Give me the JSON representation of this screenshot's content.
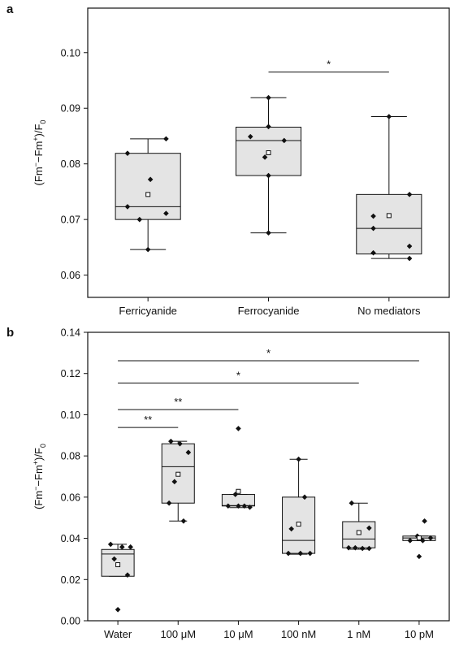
{
  "chart_data": [
    {
      "type": "box",
      "panel_label": "a",
      "ylabel": "(Fm⁻−Fm⁺)/F₀",
      "ylabel_parts": {
        "open": "(Fm",
        "sup1": "−",
        "dash": "−Fm",
        "sup2": "+",
        "close": ")/F",
        "sub": "0"
      },
      "ylim": [
        0.056,
        0.108
      ],
      "yticks": [
        0.06,
        0.07,
        0.08,
        0.09,
        0.1
      ],
      "ytick_labels": [
        "0.06",
        "0.07",
        "0.08",
        "0.09",
        "0.10"
      ],
      "categories": [
        "Ferricyanide",
        "Ferrocyanide",
        "No mediators"
      ],
      "boxes": [
        {
          "category": "Ferricyanide",
          "whisker_low": 0.0646,
          "q1": 0.07,
          "median": 0.0723,
          "q3": 0.0819,
          "whisker_high": 0.0845,
          "mean": 0.0745,
          "points": [
            {
              "j": 0.15,
              "y": 0.0845
            },
            {
              "j": -0.17,
              "y": 0.0819
            },
            {
              "j": 0.02,
              "y": 0.0772
            },
            {
              "j": -0.17,
              "y": 0.0723
            },
            {
              "j": 0.15,
              "y": 0.0711
            },
            {
              "j": -0.07,
              "y": 0.07
            },
            {
              "j": 0.0,
              "y": 0.0646
            }
          ]
        },
        {
          "category": "Ferrocyanide",
          "whisker_low": 0.0676,
          "q1": 0.0779,
          "median": 0.0842,
          "q3": 0.0866,
          "whisker_high": 0.0919,
          "mean": 0.082,
          "points": [
            {
              "j": 0.0,
              "y": 0.0919
            },
            {
              "j": 0.0,
              "y": 0.0867
            },
            {
              "j": -0.15,
              "y": 0.0849
            },
            {
              "j": 0.13,
              "y": 0.0842
            },
            {
              "j": -0.03,
              "y": 0.0812
            },
            {
              "j": 0.0,
              "y": 0.0779
            },
            {
              "j": 0.0,
              "y": 0.0676
            }
          ]
        },
        {
          "category": "No mediators",
          "whisker_low": 0.063,
          "q1": 0.0638,
          "median": 0.0684,
          "q3": 0.0745,
          "whisker_high": 0.0885,
          "mean": 0.0707,
          "points": [
            {
              "j": 0.0,
              "y": 0.0885
            },
            {
              "j": 0.17,
              "y": 0.0745
            },
            {
              "j": -0.13,
              "y": 0.0706
            },
            {
              "j": -0.13,
              "y": 0.0684
            },
            {
              "j": 0.17,
              "y": 0.0652
            },
            {
              "j": -0.13,
              "y": 0.064
            },
            {
              "j": 0.17,
              "y": 0.063
            }
          ]
        }
      ],
      "significance": [
        {
          "from": 1,
          "to": 2,
          "y": 0.0965,
          "label": "*"
        }
      ]
    },
    {
      "type": "box",
      "panel_label": "b",
      "ylabel": "(Fm⁻−Fm⁺)/F₀",
      "ylabel_parts": {
        "open": "(Fm",
        "sup1": "−",
        "dash": "−Fm",
        "sup2": "+",
        "close": ")/F",
        "sub": "0"
      },
      "ylim": [
        0.0,
        0.14
      ],
      "yticks": [
        0.0,
        0.02,
        0.04,
        0.06,
        0.08,
        0.1,
        0.12,
        0.14
      ],
      "ytick_labels": [
        "0.00",
        "0.02",
        "0.04",
        "0.06",
        "0.08",
        "0.10",
        "0.12",
        "0.14"
      ],
      "categories": [
        "Water",
        "100 μM",
        "10 μM",
        "100 nM",
        "1 nM",
        "10 pM"
      ],
      "boxes": [
        {
          "category": "Water",
          "whisker_low": 0.0216,
          "q1": 0.0216,
          "median": 0.0324,
          "q3": 0.0346,
          "whisker_high": 0.0371,
          "mean": 0.0272,
          "points": [
            {
              "j": -0.12,
              "y": 0.0371
            },
            {
              "j": 0.07,
              "y": 0.0358
            },
            {
              "j": 0.21,
              "y": 0.0358
            },
            {
              "j": -0.06,
              "y": 0.03
            },
            {
              "j": 0.16,
              "y": 0.0222
            },
            {
              "j": 0.0,
              "y": 0.0054
            }
          ]
        },
        {
          "category": "100 μM",
          "whisker_low": 0.0484,
          "q1": 0.0571,
          "median": 0.0748,
          "q3": 0.0859,
          "whisker_high": 0.0871,
          "mean": 0.0711,
          "points": [
            {
              "j": -0.12,
              "y": 0.0871
            },
            {
              "j": 0.03,
              "y": 0.0859
            },
            {
              "j": 0.17,
              "y": 0.0817
            },
            {
              "j": -0.06,
              "y": 0.0675
            },
            {
              "j": -0.15,
              "y": 0.0571
            },
            {
              "j": 0.09,
              "y": 0.0484
            }
          ]
        },
        {
          "category": "10 μM",
          "whisker_low": 0.0549,
          "q1": 0.0557,
          "median": 0.0559,
          "q3": 0.0613,
          "whisker_high": 0.0613,
          "mean": 0.0628,
          "points": [
            {
              "j": 0.0,
              "y": 0.0933
            },
            {
              "j": -0.05,
              "y": 0.0613
            },
            {
              "j": -0.17,
              "y": 0.0557
            },
            {
              "j": 0.0,
              "y": 0.0557
            },
            {
              "j": 0.1,
              "y": 0.0557
            },
            {
              "j": 0.19,
              "y": 0.0551
            }
          ]
        },
        {
          "category": "100 nM",
          "whisker_low": 0.0323,
          "q1": 0.0327,
          "median": 0.039,
          "q3": 0.06,
          "whisker_high": 0.0784,
          "mean": 0.0469,
          "points": [
            {
              "j": 0.0,
              "y": 0.0784
            },
            {
              "j": 0.1,
              "y": 0.06
            },
            {
              "j": -0.12,
              "y": 0.0446
            },
            {
              "j": -0.17,
              "y": 0.0327
            },
            {
              "j": 0.03,
              "y": 0.0327
            },
            {
              "j": 0.19,
              "y": 0.0327
            }
          ]
        },
        {
          "category": "1 nM",
          "whisker_low": 0.0347,
          "q1": 0.0354,
          "median": 0.0397,
          "q3": 0.0481,
          "whisker_high": 0.0571,
          "mean": 0.0428,
          "points": [
            {
              "j": -0.12,
              "y": 0.0571
            },
            {
              "j": 0.17,
              "y": 0.045
            },
            {
              "j": -0.17,
              "y": 0.0354
            },
            {
              "j": -0.06,
              "y": 0.0354
            },
            {
              "j": 0.06,
              "y": 0.0351
            },
            {
              "j": 0.17,
              "y": 0.0351
            }
          ]
        },
        {
          "category": "10 pM",
          "whisker_low": 0.0389,
          "q1": 0.0389,
          "median": 0.0402,
          "q3": 0.0411,
          "whisker_high": 0.0411,
          "mean": 0.0402,
          "points": [
            {
              "j": 0.09,
              "y": 0.0484
            },
            {
              "j": -0.03,
              "y": 0.0411
            },
            {
              "j": 0.19,
              "y": 0.0402
            },
            {
              "j": -0.15,
              "y": 0.0389
            },
            {
              "j": 0.06,
              "y": 0.0389
            },
            {
              "j": 0.0,
              "y": 0.0312
            }
          ]
        }
      ],
      "significance": [
        {
          "from": 0,
          "to": 1,
          "y": 0.0938,
          "label": "**"
        },
        {
          "from": 0,
          "to": 2,
          "y": 0.1025,
          "label": "**"
        },
        {
          "from": 0,
          "to": 4,
          "y": 0.1154,
          "label": "*"
        },
        {
          "from": 0,
          "to": 5,
          "y": 0.1262,
          "label": "*"
        }
      ]
    }
  ],
  "colors": {
    "box_fill": "#e4e4e4",
    "stroke": "#111111",
    "point": "#111111",
    "mean_marker_fill": "#ffffff"
  }
}
